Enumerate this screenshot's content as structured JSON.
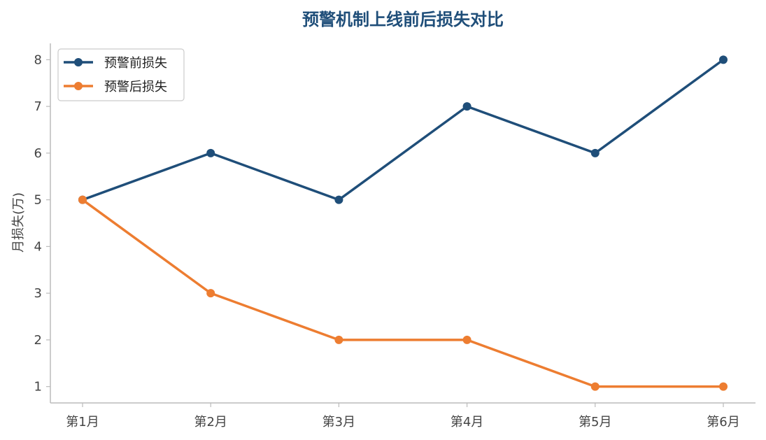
{
  "chart_data": {
    "type": "line",
    "title": "预警机制上线前后损失对比",
    "xlabel": "",
    "ylabel": "月损失(万)",
    "categories": [
      "第1月",
      "第2月",
      "第3月",
      "第4月",
      "第5月",
      "第6月"
    ],
    "series": [
      {
        "name": "预警前损失",
        "values": [
          5,
          6,
          5,
          7,
          6,
          8
        ],
        "color": "#1f4e79"
      },
      {
        "name": "预警后损失",
        "values": [
          5,
          3,
          2,
          2,
          1,
          1
        ],
        "color": "#ed7d31"
      }
    ],
    "yticks": [
      1,
      2,
      3,
      4,
      5,
      6,
      7,
      8
    ],
    "ylim": [
      0.65,
      8.35
    ],
    "grid": false,
    "legend": "top-left",
    "title_color": "#1f4e79",
    "axis_color": "#bbbbbb"
  }
}
